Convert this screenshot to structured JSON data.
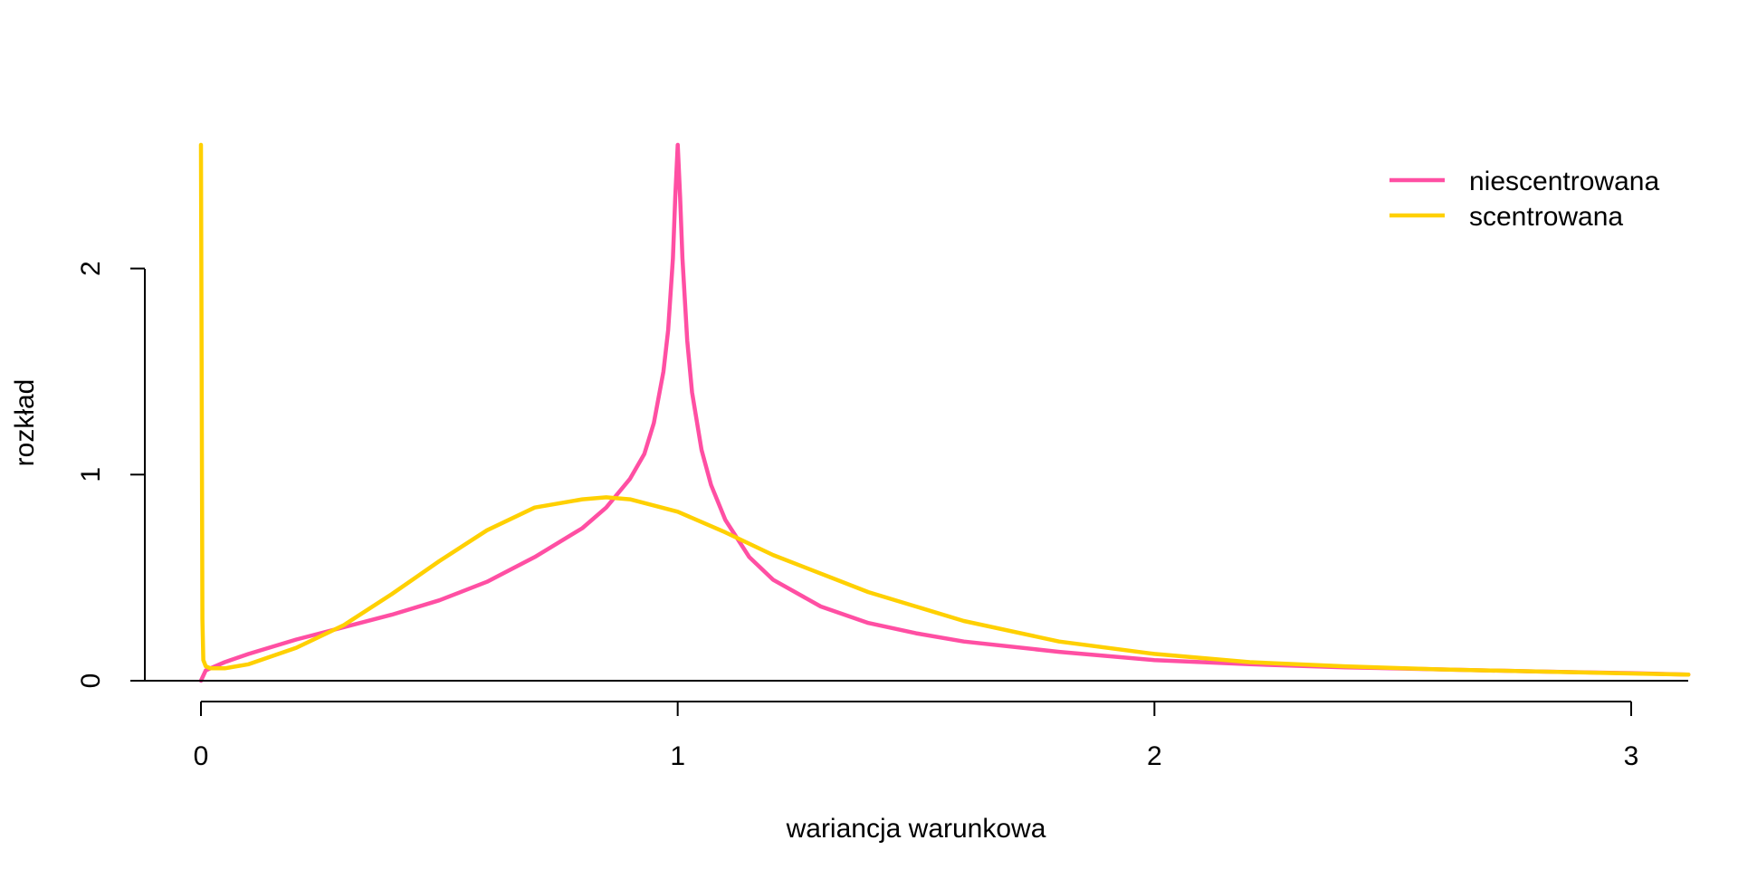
{
  "chart_data": {
    "type": "line",
    "title": "",
    "xlabel": "wariancja warunkowa",
    "ylabel": "rozkład",
    "xlim": [
      -0.12,
      3.12
    ],
    "ylim": [
      0,
      2.6
    ],
    "x_ticks": [
      "0",
      "1",
      "2",
      "3"
    ],
    "y_ticks": [
      "0",
      "1",
      "2"
    ],
    "grid": false,
    "legend_position": "top-right",
    "series": [
      {
        "name": "niescentrowana",
        "color": "#FF4FA3",
        "x": [
          0,
          0.01,
          0.05,
          0.1,
          0.2,
          0.3,
          0.4,
          0.5,
          0.6,
          0.7,
          0.8,
          0.85,
          0.9,
          0.93,
          0.95,
          0.97,
          0.98,
          0.99,
          0.995,
          1.0,
          1.005,
          1.01,
          1.02,
          1.03,
          1.05,
          1.07,
          1.1,
          1.15,
          1.2,
          1.3,
          1.4,
          1.5,
          1.6,
          1.8,
          2.0,
          2.2,
          2.4,
          2.6,
          2.8,
          3.0,
          3.12
        ],
        "y": [
          0.0,
          0.05,
          0.09,
          0.13,
          0.2,
          0.26,
          0.32,
          0.39,
          0.48,
          0.6,
          0.74,
          0.84,
          0.98,
          1.1,
          1.25,
          1.5,
          1.7,
          2.05,
          2.35,
          2.6,
          2.35,
          2.05,
          1.65,
          1.4,
          1.12,
          0.95,
          0.78,
          0.6,
          0.49,
          0.36,
          0.28,
          0.23,
          0.19,
          0.14,
          0.1,
          0.08,
          0.065,
          0.055,
          0.045,
          0.037,
          0.03
        ]
      },
      {
        "name": "scentrowana",
        "color": "#FFD000",
        "x": [
          0.0,
          0.003,
          0.005,
          0.01,
          0.02,
          0.05,
          0.1,
          0.2,
          0.3,
          0.4,
          0.5,
          0.6,
          0.7,
          0.8,
          0.85,
          0.9,
          1.0,
          1.1,
          1.2,
          1.4,
          1.6,
          1.8,
          2.0,
          2.2,
          2.4,
          2.6,
          2.8,
          3.0,
          3.12
        ],
        "y": [
          2.6,
          0.3,
          0.1,
          0.07,
          0.06,
          0.06,
          0.08,
          0.16,
          0.27,
          0.42,
          0.58,
          0.73,
          0.84,
          0.88,
          0.89,
          0.88,
          0.82,
          0.72,
          0.61,
          0.43,
          0.29,
          0.19,
          0.13,
          0.09,
          0.07,
          0.055,
          0.045,
          0.035,
          0.03
        ]
      }
    ]
  }
}
